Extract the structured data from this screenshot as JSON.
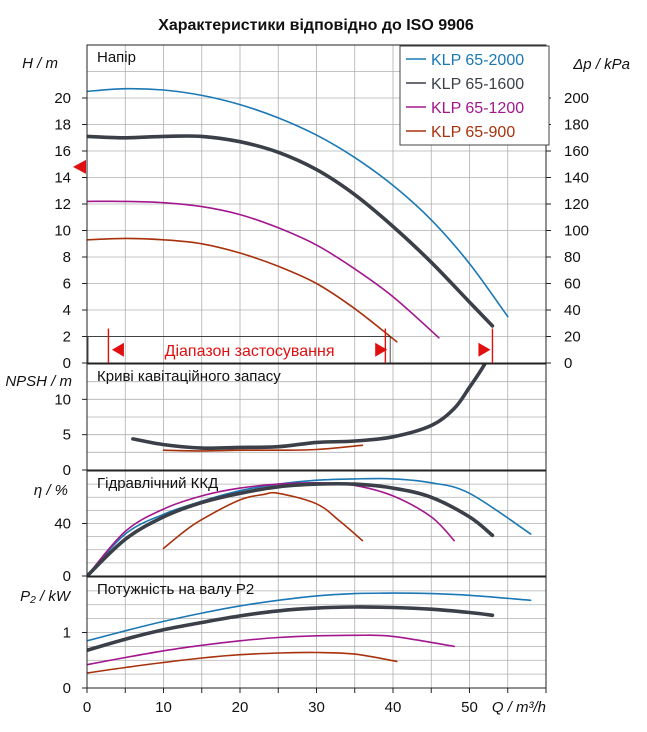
{
  "title": "Характеристики відповідно до ISO 9906",
  "legend": [
    {
      "name": "KLP 65-2000",
      "color": "#1a78b4"
    },
    {
      "name": "KLP 65-1600",
      "color": "#3a3f48"
    },
    {
      "name": "KLP 65-1200",
      "color": "#a3168e"
    },
    {
      "name": "KLP 65-900",
      "color": "#a8320c"
    }
  ],
  "range_label": "Діапазон застосування",
  "colors": {
    "grid": "#b0b0b0",
    "accent": "#e01010"
  },
  "chart_data": [
    {
      "type": "line",
      "panel_title": "Напір",
      "ylabel": "H / m",
      "y2label": "Δp / kPa",
      "xlim": [
        0,
        60
      ],
      "ylim": [
        0,
        24
      ],
      "y2lim": [
        0,
        240
      ],
      "yticks": [
        0,
        2,
        4,
        6,
        8,
        10,
        12,
        14,
        16,
        18,
        20
      ],
      "y2ticks": [
        0,
        20,
        40,
        60,
        80,
        100,
        120,
        140,
        160,
        180,
        200
      ],
      "series": [
        {
          "name": "KLP 65-2000",
          "x": [
            0,
            5,
            10,
            15,
            20,
            25,
            30,
            35,
            40,
            45,
            50,
            55
          ],
          "y": [
            20.5,
            20.7,
            20.6,
            20.2,
            19.5,
            18.5,
            17.2,
            15.5,
            13.4,
            10.8,
            7.5,
            3.5
          ]
        },
        {
          "name": "KLP 65-1600",
          "x": [
            0,
            5,
            10,
            15,
            20,
            25,
            30,
            35,
            40,
            45,
            50,
            53
          ],
          "y": [
            17.1,
            17.0,
            17.1,
            17.1,
            16.7,
            15.9,
            14.6,
            12.7,
            10.3,
            7.6,
            4.6,
            2.8
          ]
        },
        {
          "name": "KLP 65-1200",
          "x": [
            0,
            5,
            10,
            15,
            20,
            25,
            30,
            35,
            40,
            46
          ],
          "y": [
            12.2,
            12.2,
            12.1,
            11.8,
            11.2,
            10.2,
            8.9,
            7.1,
            5.0,
            1.9
          ]
        },
        {
          "name": "KLP 65-900",
          "x": [
            0,
            5,
            10,
            15,
            20,
            25,
            30,
            35,
            40.5
          ],
          "y": [
            9.3,
            9.4,
            9.3,
            9.0,
            8.3,
            7.3,
            6.0,
            4.1,
            1.6
          ]
        }
      ],
      "annotations": [
        "Діапазон застосування"
      ]
    },
    {
      "type": "line",
      "panel_title": "Криві кавітаційного запасу",
      "ylabel": "NPSH / m",
      "xlim": [
        0,
        60
      ],
      "ylim": [
        0,
        15
      ],
      "yticks": [
        0,
        5,
        10
      ],
      "series": [
        {
          "name": "KLP 65-1600",
          "x": [
            6,
            10,
            15,
            20,
            25,
            30,
            35,
            40,
            45,
            48,
            50,
            52,
            54
          ],
          "y": [
            4.4,
            3.6,
            3.1,
            3.2,
            3.3,
            3.9,
            4.1,
            4.7,
            6.3,
            8.7,
            11.7,
            15.0,
            19.2
          ]
        },
        {
          "name": "KLP 65-900",
          "x": [
            10,
            15,
            20,
            25,
            30,
            36
          ],
          "y": [
            2.8,
            2.7,
            2.8,
            2.8,
            2.9,
            3.5
          ]
        }
      ]
    },
    {
      "type": "line",
      "panel_title": "Гідравлічний ККД",
      "ylabel": "η / %",
      "xlim": [
        0,
        60
      ],
      "ylim": [
        0,
        80
      ],
      "yticks": [
        0,
        40
      ],
      "series": [
        {
          "name": "KLP 65-2000",
          "x": [
            0,
            5,
            10,
            15,
            20,
            25,
            30,
            35,
            40,
            45,
            50,
            58
          ],
          "y": [
            0,
            32,
            47,
            57,
            65,
            70,
            73,
            74,
            74,
            71,
            63,
            32
          ]
        },
        {
          "name": "KLP 65-1600",
          "x": [
            0,
            5,
            10,
            15,
            20,
            25,
            30,
            35,
            40,
            45,
            50,
            53
          ],
          "y": [
            0,
            28,
            45,
            56,
            63,
            68,
            70,
            70,
            67,
            60,
            45,
            31
          ]
        },
        {
          "name": "KLP 65-1200",
          "x": [
            0,
            5,
            10,
            15,
            20,
            25,
            30,
            35,
            40,
            45,
            48
          ],
          "y": [
            0,
            34,
            51,
            61,
            67,
            70,
            71,
            69,
            61,
            45,
            27
          ]
        },
        {
          "name": "KLP 65-900",
          "x": [
            10,
            12.5,
            15,
            20,
            23,
            25,
            30,
            33,
            36
          ],
          "y": [
            21,
            33,
            43,
            58,
            62,
            63,
            55,
            42,
            27
          ]
        }
      ]
    },
    {
      "type": "line",
      "panel_title": "Потужність на валу P2",
      "ylabel": "P₂ / kW",
      "xlim": [
        0,
        60
      ],
      "ylim": [
        0,
        2
      ],
      "yticks": [
        0,
        1
      ],
      "series": [
        {
          "name": "KLP 65-2000",
          "x": [
            0,
            5,
            10,
            15,
            20,
            25,
            30,
            35,
            40,
            45,
            50,
            58
          ],
          "y": [
            0.85,
            1.03,
            1.2,
            1.35,
            1.48,
            1.58,
            1.66,
            1.7,
            1.71,
            1.7,
            1.67,
            1.58
          ]
        },
        {
          "name": "KLP 65-1600",
          "x": [
            0,
            5,
            10,
            15,
            20,
            25,
            30,
            35,
            40,
            45,
            50,
            53
          ],
          "y": [
            0.68,
            0.88,
            1.05,
            1.18,
            1.3,
            1.39,
            1.44,
            1.46,
            1.45,
            1.42,
            1.36,
            1.31
          ]
        },
        {
          "name": "KLP 65-1200",
          "x": [
            0,
            5,
            10,
            15,
            20,
            25,
            30,
            35,
            40,
            48
          ],
          "y": [
            0.42,
            0.55,
            0.67,
            0.77,
            0.85,
            0.91,
            0.94,
            0.95,
            0.93,
            0.75
          ]
        },
        {
          "name": "KLP 65-900",
          "x": [
            0,
            5,
            10,
            15,
            20,
            25,
            30,
            35,
            40.5
          ],
          "y": [
            0.27,
            0.37,
            0.46,
            0.54,
            0.6,
            0.63,
            0.64,
            0.61,
            0.48
          ]
        }
      ],
      "xticks": [
        0,
        10,
        20,
        30,
        40,
        50
      ],
      "xlabel": "Q / m³/h"
    }
  ]
}
